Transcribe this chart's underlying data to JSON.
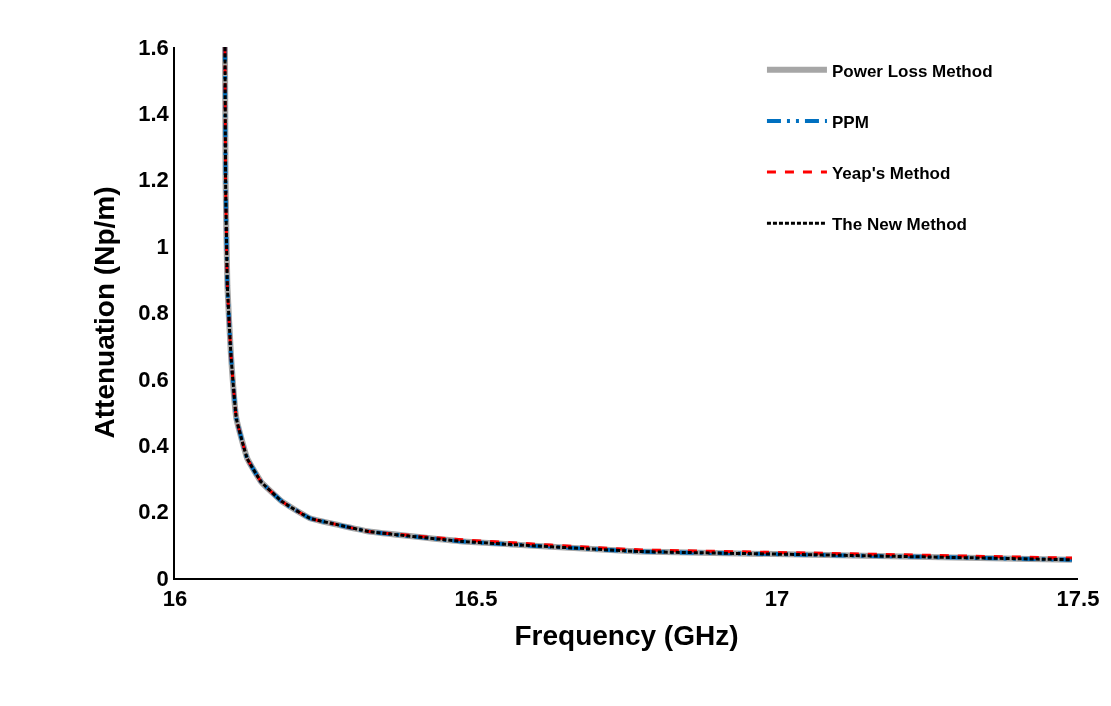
{
  "chart_data": {
    "type": "line",
    "xlabel": "Frequency (GHz)",
    "ylabel": "Attenuation (Np/m)",
    "x": [
      16.083,
      16.084,
      16.087,
      16.093,
      16.102,
      16.12,
      16.143,
      16.178,
      16.224,
      16.271,
      16.322,
      16.478,
      16.77,
      17.06,
      17.49
    ],
    "series": [
      {
        "name": "Power Loss Method",
        "color": "#a6a6a6",
        "line_style": "solid",
        "values": [
          1.6,
          1.2,
          0.88,
          0.67,
          0.48,
          0.36,
          0.29,
          0.23,
          0.18,
          0.16,
          0.14,
          0.11,
          0.08,
          0.07,
          0.055
        ]
      },
      {
        "name": "PPM",
        "color": "#0070c0",
        "line_style": "dashdot",
        "values": [
          1.6,
          1.2,
          0.88,
          0.67,
          0.48,
          0.36,
          0.29,
          0.23,
          0.18,
          0.16,
          0.14,
          0.11,
          0.08,
          0.07,
          0.055
        ]
      },
      {
        "name": "Yeap's Method",
        "color": "#ff0000",
        "line_style": "dashed",
        "values": [
          1.6,
          1.2,
          0.88,
          0.67,
          0.48,
          0.36,
          0.29,
          0.23,
          0.18,
          0.16,
          0.14,
          0.115,
          0.085,
          0.075,
          0.06
        ]
      },
      {
        "name": "The New Method",
        "color": "#000000",
        "line_style": "dotted",
        "values": [
          1.6,
          1.2,
          0.88,
          0.67,
          0.48,
          0.36,
          0.29,
          0.23,
          0.18,
          0.16,
          0.14,
          0.11,
          0.08,
          0.07,
          0.055
        ]
      }
    ],
    "xlim": [
      16,
      17.5
    ],
    "xticks": [
      16,
      16.5,
      17,
      17.5
    ],
    "ylim": [
      0,
      1.6
    ],
    "yticks": [
      0,
      0.2,
      0.4,
      0.6,
      0.8,
      1,
      1.2,
      1.4,
      1.6
    ],
    "legend": "top right",
    "marker": "none"
  }
}
